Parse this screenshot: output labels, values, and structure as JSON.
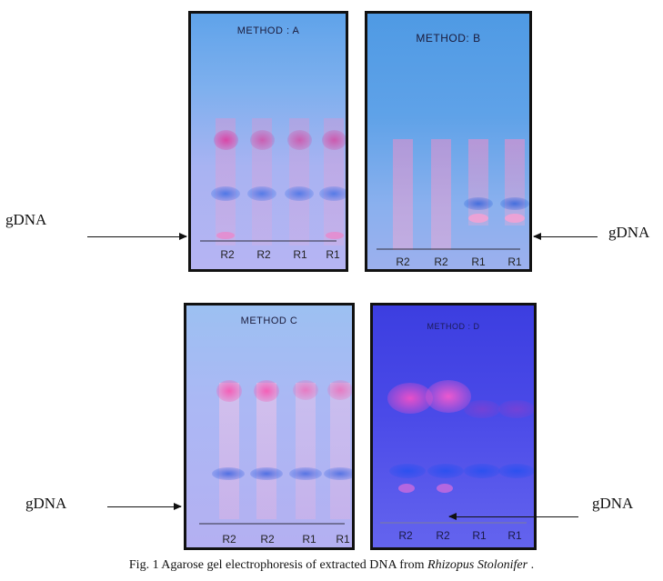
{
  "caption": {
    "prefix": "Fig. 1 Agarose gel electrophoresis of extracted DNA from ",
    "organism": "Rhizopus Stolonifer",
    "suffix": " ."
  },
  "gels": [
    {
      "title": "METHOD : A",
      "lanes": [
        "R2",
        "R2",
        "R1",
        "R1"
      ]
    },
    {
      "title": "METHOD:  B",
      "lanes": [
        "R2",
        "R2",
        "R1",
        "R1"
      ]
    },
    {
      "title": "METHOD  C",
      "lanes": [
        "R2",
        "R2",
        "R1",
        "R1"
      ]
    },
    {
      "title": "METHOD : D",
      "lanes": [
        "R2",
        "R2",
        "R1",
        "R1"
      ]
    }
  ],
  "markers": {
    "a": "gDNA",
    "b": "gDNA",
    "c": "gDNA",
    "d": "gDNA"
  },
  "colors": {
    "gel_a": "#8fb0f0",
    "gel_b": "#69a6e8",
    "gel_c": "#aab8f4",
    "gel_d": "#4848e6",
    "band_pink": "#e05aa8",
    "band_blue": "#4a78e0"
  }
}
